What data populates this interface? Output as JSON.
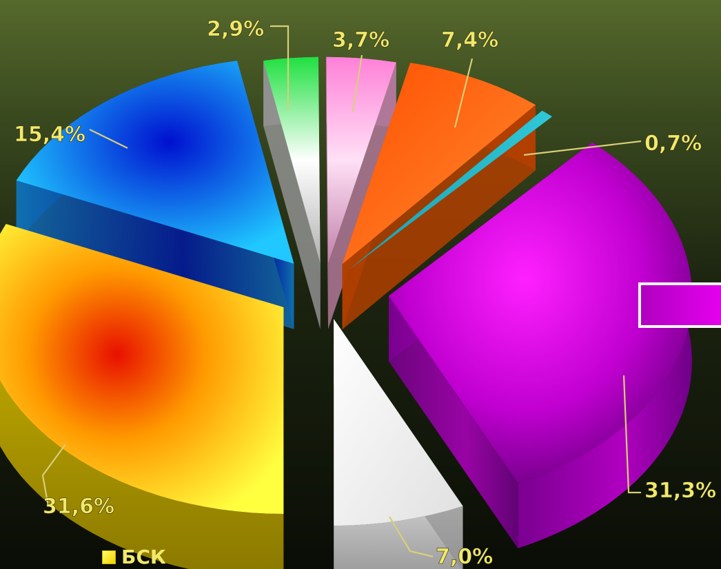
{
  "chart_data": {
    "type": "pie",
    "title": "",
    "slices": [
      {
        "label": "31,6%",
        "value": 31.6,
        "color": "#f4d400"
      },
      {
        "label": "15,4%",
        "value": 15.4,
        "color": "#1b8fe0"
      },
      {
        "label": "2,9%",
        "value": 2.9,
        "color": "#2fd850"
      },
      {
        "label": "3,7%",
        "value": 3.7,
        "color": "#ff9ae0"
      },
      {
        "label": "7,4%",
        "value": 7.4,
        "color": "#ff6a10"
      },
      {
        "label": "0,7%",
        "value": 0.7,
        "color": "#2fb8c8"
      },
      {
        "label": "31,3%",
        "value": 31.3,
        "color": "#cc10d8"
      },
      {
        "label": "7,0%",
        "value": 7.0,
        "color": "#f0f0f0"
      }
    ],
    "legend": [
      {
        "label": "БСК",
        "color": "#f4d400"
      }
    ]
  }
}
